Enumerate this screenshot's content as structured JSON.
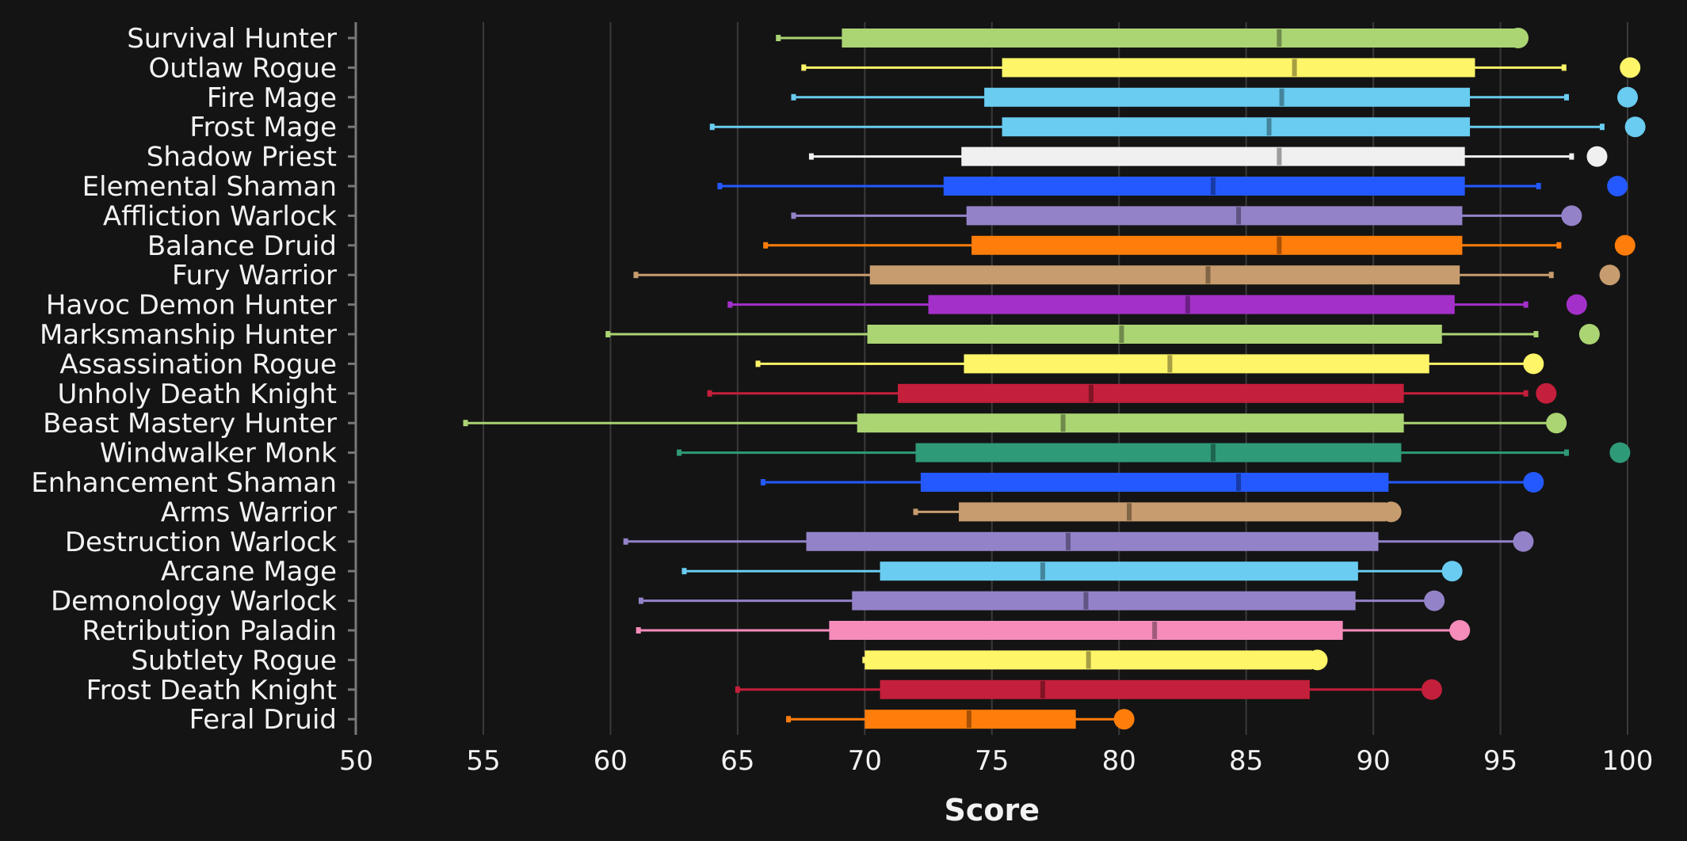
{
  "chart_data": {
    "type": "boxplot",
    "xlabel": "Score",
    "xlim": [
      50,
      100
    ],
    "x_ticks": [
      50,
      55,
      60,
      65,
      70,
      75,
      80,
      85,
      90,
      95,
      100
    ],
    "grid": "vertical",
    "series": [
      {
        "label": "Survival Hunter",
        "color": "#abd473",
        "min": 66.6,
        "q1": 69.1,
        "median": 86.3,
        "q3": 95.6,
        "max": 95.6,
        "top": 95.7
      },
      {
        "label": "Outlaw Rogue",
        "color": "#fff569",
        "min": 67.6,
        "q1": 75.4,
        "median": 86.9,
        "q3": 94.0,
        "max": 97.5,
        "top": 100.1
      },
      {
        "label": "Fire Mage",
        "color": "#69ccf0",
        "min": 67.2,
        "q1": 74.7,
        "median": 86.4,
        "q3": 93.8,
        "max": 97.6,
        "top": 100.0
      },
      {
        "label": "Frost Mage",
        "color": "#69ccf0",
        "min": 64.0,
        "q1": 75.4,
        "median": 85.9,
        "q3": 93.8,
        "max": 99.0,
        "top": 100.3
      },
      {
        "label": "Shadow Priest",
        "color": "#f0f0f0",
        "min": 67.9,
        "q1": 73.8,
        "median": 86.3,
        "q3": 93.6,
        "max": 97.8,
        "top": 98.8
      },
      {
        "label": "Elemental Shaman",
        "color": "#2459ff",
        "min": 64.3,
        "q1": 73.1,
        "median": 83.7,
        "q3": 93.6,
        "max": 96.5,
        "top": 99.6
      },
      {
        "label": "Affliction Warlock",
        "color": "#9482c9",
        "min": 67.2,
        "q1": 74.0,
        "median": 84.7,
        "q3": 93.5,
        "max": 97.8,
        "top": 97.8
      },
      {
        "label": "Balance Druid",
        "color": "#ff7d0a",
        "min": 66.1,
        "q1": 74.2,
        "median": 86.3,
        "q3": 93.5,
        "max": 97.3,
        "top": 99.9
      },
      {
        "label": "Fury Warrior",
        "color": "#c79c6e",
        "min": 61.0,
        "q1": 70.2,
        "median": 83.5,
        "q3": 93.4,
        "max": 97.0,
        "top": 99.3
      },
      {
        "label": "Havoc Demon Hunter",
        "color": "#a330c9",
        "min": 64.7,
        "q1": 72.5,
        "median": 82.7,
        "q3": 93.2,
        "max": 96.0,
        "top": 98.0
      },
      {
        "label": "Marksmanship Hunter",
        "color": "#abd473",
        "min": 59.9,
        "q1": 70.1,
        "median": 80.1,
        "q3": 92.7,
        "max": 96.4,
        "top": 98.5
      },
      {
        "label": "Assassination Rogue",
        "color": "#fff569",
        "min": 65.8,
        "q1": 73.9,
        "median": 82.0,
        "q3": 92.2,
        "max": 96.3,
        "top": 96.3
      },
      {
        "label": "Unholy Death Knight",
        "color": "#c41f3b",
        "min": 63.9,
        "q1": 71.3,
        "median": 78.9,
        "q3": 91.2,
        "max": 96.0,
        "top": 96.8
      },
      {
        "label": "Beast Mastery Hunter",
        "color": "#abd473",
        "min": 54.3,
        "q1": 69.7,
        "median": 77.8,
        "q3": 91.2,
        "max": 96.9,
        "top": 97.2
      },
      {
        "label": "Windwalker Monk",
        "color": "#2f9a78",
        "min": 62.7,
        "q1": 72.0,
        "median": 83.7,
        "q3": 91.1,
        "max": 97.6,
        "top": 99.7
      },
      {
        "label": "Enhancement Shaman",
        "color": "#2459ff",
        "min": 66.0,
        "q1": 72.2,
        "median": 84.7,
        "q3": 90.6,
        "max": 96.3,
        "top": 96.3
      },
      {
        "label": "Arms Warrior",
        "color": "#c79c6e",
        "min": 72.0,
        "q1": 73.7,
        "median": 80.4,
        "q3": 90.5,
        "max": 90.7,
        "top": 90.7
      },
      {
        "label": "Destruction Warlock",
        "color": "#9482c9",
        "min": 60.6,
        "q1": 67.7,
        "median": 78.0,
        "q3": 90.2,
        "max": 95.9,
        "top": 95.9
      },
      {
        "label": "Arcane Mage",
        "color": "#69ccf0",
        "min": 62.9,
        "q1": 70.6,
        "median": 77.0,
        "q3": 89.4,
        "max": 93.1,
        "top": 93.1
      },
      {
        "label": "Demonology Warlock",
        "color": "#9482c9",
        "min": 61.2,
        "q1": 69.5,
        "median": 78.7,
        "q3": 89.3,
        "max": 92.4,
        "top": 92.4
      },
      {
        "label": "Retribution Paladin",
        "color": "#f58cba",
        "min": 61.1,
        "q1": 68.6,
        "median": 81.4,
        "q3": 88.8,
        "max": 93.4,
        "top": 93.4
      },
      {
        "label": "Subtlety Rogue",
        "color": "#fff569",
        "min": 70.0,
        "q1": 70.0,
        "median": 78.8,
        "q3": 87.6,
        "max": 87.8,
        "top": 87.8
      },
      {
        "label": "Frost Death Knight",
        "color": "#c41f3b",
        "min": 65.0,
        "q1": 70.6,
        "median": 77.0,
        "q3": 87.5,
        "max": 92.3,
        "top": 92.3
      },
      {
        "label": "Feral Druid",
        "color": "#ff7d0a",
        "min": 67.0,
        "q1": 70.0,
        "median": 74.1,
        "q3": 78.3,
        "max": 80.2,
        "top": 80.2
      }
    ]
  }
}
